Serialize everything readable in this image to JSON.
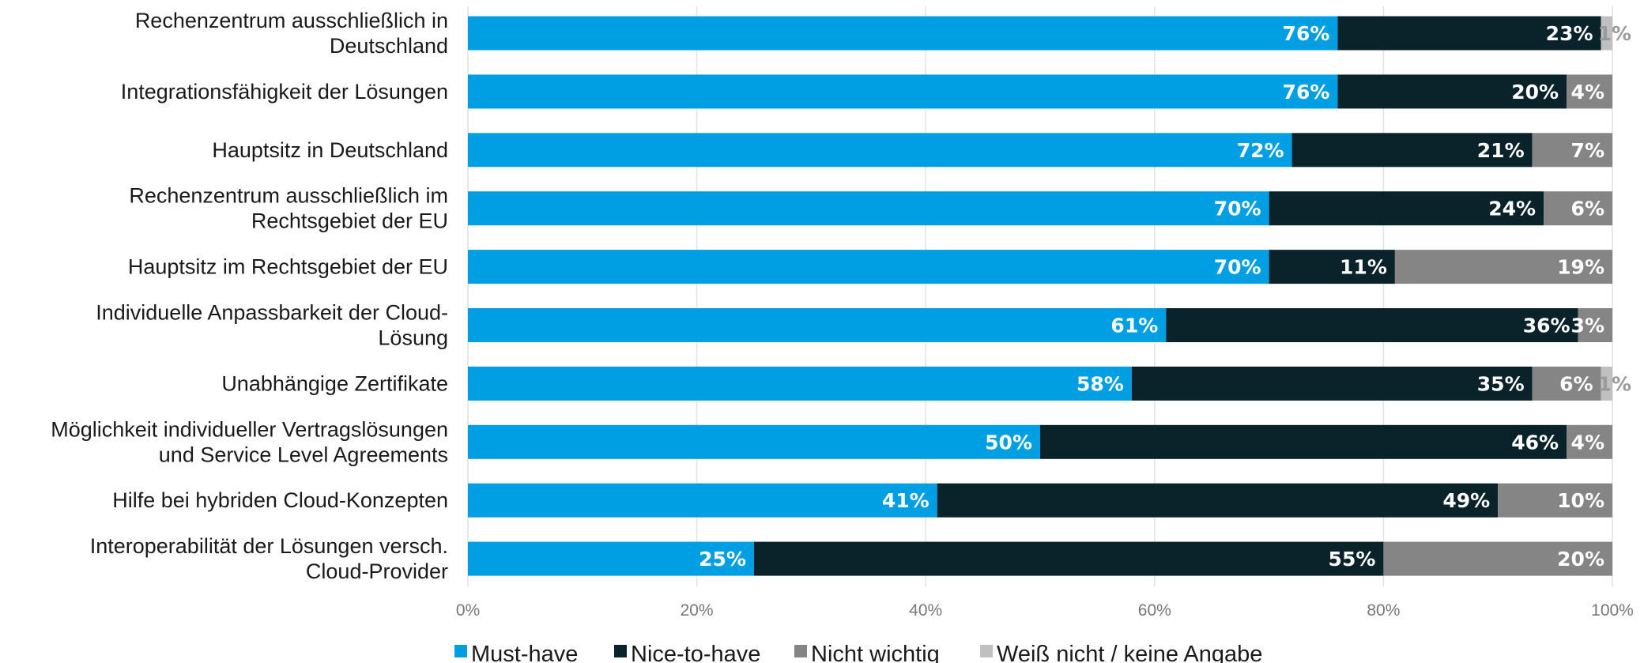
{
  "chart_data": {
    "type": "bar",
    "orientation": "horizontal",
    "stacked": true,
    "categories": [
      [
        "Rechenzentrum ausschließlich in",
        "Deutschland"
      ],
      [
        "Integrationsfähigkeit der Lösungen"
      ],
      [
        "Hauptsitz in Deutschland"
      ],
      [
        "Rechenzentrum ausschließlich im",
        "Rechtsgebiet der EU"
      ],
      [
        "Hauptsitz im Rechtsgebiet der EU"
      ],
      [
        "Individuelle Anpassbarkeit der Cloud-",
        "Lösung"
      ],
      [
        "Unabhängige Zertifikate"
      ],
      [
        "Möglichkeit individueller Vertragslösungen",
        "und Service Level Agreements"
      ],
      [
        "Hilfe bei hybriden Cloud-Konzepten"
      ],
      [
        "Interoperabilität der Lösungen versch.",
        "Cloud-Provider"
      ]
    ],
    "series": [
      {
        "name": "Must-have",
        "color": "#009fe3",
        "label_color": "#ffffff",
        "values": [
          76,
          76,
          72,
          70,
          70,
          61,
          58,
          50,
          41,
          25
        ]
      },
      {
        "name": "Nice-to-have",
        "color": "#0a232b",
        "label_color": "#ffffff",
        "values": [
          23,
          20,
          21,
          24,
          11,
          36,
          35,
          46,
          49,
          55
        ]
      },
      {
        "name": "Nicht wichtig",
        "color": "#858585",
        "label_color": "#ffffff",
        "values": [
          0,
          4,
          7,
          6,
          19,
          3,
          6,
          4,
          10,
          20
        ]
      },
      {
        "name": "Weiß nicht / keine Angabe",
        "color": "#c0c0c0",
        "label_color": "#9a9a9a",
        "values": [
          1,
          0,
          0,
          0,
          0,
          0,
          1,
          0,
          0,
          0
        ]
      }
    ],
    "xlim": [
      0,
      100
    ],
    "xticks": [
      0,
      20,
      40,
      60,
      80,
      100
    ],
    "tick_suffix": "%",
    "value_suffix": "%",
    "grid": true,
    "legend_position": "bottom"
  }
}
